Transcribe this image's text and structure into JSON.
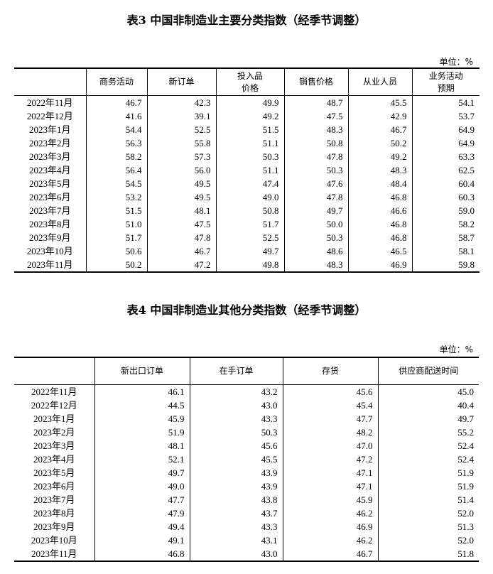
{
  "table3": {
    "title": "表3 中国非制造业主要分类指数（经季节调整）",
    "unit": "单位：%",
    "headers": [
      "",
      "商务活动",
      "新订单",
      "投入品\n价格",
      "销售价格",
      "从业人员",
      "业务活动\n预期"
    ],
    "rows": [
      [
        "2022年11月",
        "46.7",
        "42.3",
        "49.9",
        "48.7",
        "45.5",
        "54.1"
      ],
      [
        "2022年12月",
        "41.6",
        "39.1",
        "49.2",
        "47.5",
        "42.9",
        "53.7"
      ],
      [
        "2023年1月",
        "54.4",
        "52.5",
        "51.5",
        "48.3",
        "46.7",
        "64.9"
      ],
      [
        "2023年2月",
        "56.3",
        "55.8",
        "51.1",
        "50.8",
        "50.2",
        "64.9"
      ],
      [
        "2023年3月",
        "58.2",
        "57.3",
        "50.3",
        "47.8",
        "49.2",
        "63.3"
      ],
      [
        "2023年4月",
        "56.4",
        "56.0",
        "51.1",
        "50.3",
        "48.3",
        "62.5"
      ],
      [
        "2023年5月",
        "54.5",
        "49.5",
        "47.4",
        "47.6",
        "48.4",
        "60.4"
      ],
      [
        "2023年6月",
        "53.2",
        "49.5",
        "49.0",
        "47.8",
        "46.8",
        "60.3"
      ],
      [
        "2023年7月",
        "51.5",
        "48.1",
        "50.8",
        "49.7",
        "46.6",
        "59.0"
      ],
      [
        "2023年8月",
        "51.0",
        "47.5",
        "51.7",
        "50.0",
        "46.8",
        "58.2"
      ],
      [
        "2023年9月",
        "51.7",
        "47.8",
        "52.5",
        "50.3",
        "46.8",
        "58.7"
      ],
      [
        "2023年10月",
        "50.6",
        "46.7",
        "49.7",
        "48.6",
        "46.5",
        "58.1"
      ],
      [
        "2023年11月",
        "50.2",
        "47.2",
        "49.8",
        "48.3",
        "46.9",
        "59.8"
      ]
    ]
  },
  "table4": {
    "title": "表4 中国非制造业其他分类指数（经季节调整）",
    "unit": "单位：%",
    "headers": [
      "",
      "新出口订单",
      "在手订单",
      "存货",
      "供应商配送时间"
    ],
    "rows": [
      [
        "2022年11月",
        "46.1",
        "43.2",
        "45.6",
        "45.0"
      ],
      [
        "2022年12月",
        "44.5",
        "43.0",
        "45.4",
        "40.4"
      ],
      [
        "2023年1月",
        "45.9",
        "43.3",
        "47.7",
        "49.7"
      ],
      [
        "2023年2月",
        "51.9",
        "50.3",
        "48.2",
        "55.2"
      ],
      [
        "2023年3月",
        "48.1",
        "45.6",
        "47.0",
        "52.4"
      ],
      [
        "2023年4月",
        "52.1",
        "45.5",
        "47.2",
        "52.4"
      ],
      [
        "2023年5月",
        "49.7",
        "43.9",
        "47.1",
        "51.9"
      ],
      [
        "2023年6月",
        "49.0",
        "43.9",
        "47.1",
        "51.9"
      ],
      [
        "2023年7月",
        "47.7",
        "43.8",
        "45.9",
        "51.4"
      ],
      [
        "2023年8月",
        "47.9",
        "43.7",
        "46.2",
        "52.0"
      ],
      [
        "2023年9月",
        "49.4",
        "43.3",
        "46.9",
        "51.3"
      ],
      [
        "2023年10月",
        "49.1",
        "43.1",
        "46.2",
        "52.0"
      ],
      [
        "2023年11月",
        "46.8",
        "43.0",
        "46.7",
        "51.8"
      ]
    ]
  }
}
